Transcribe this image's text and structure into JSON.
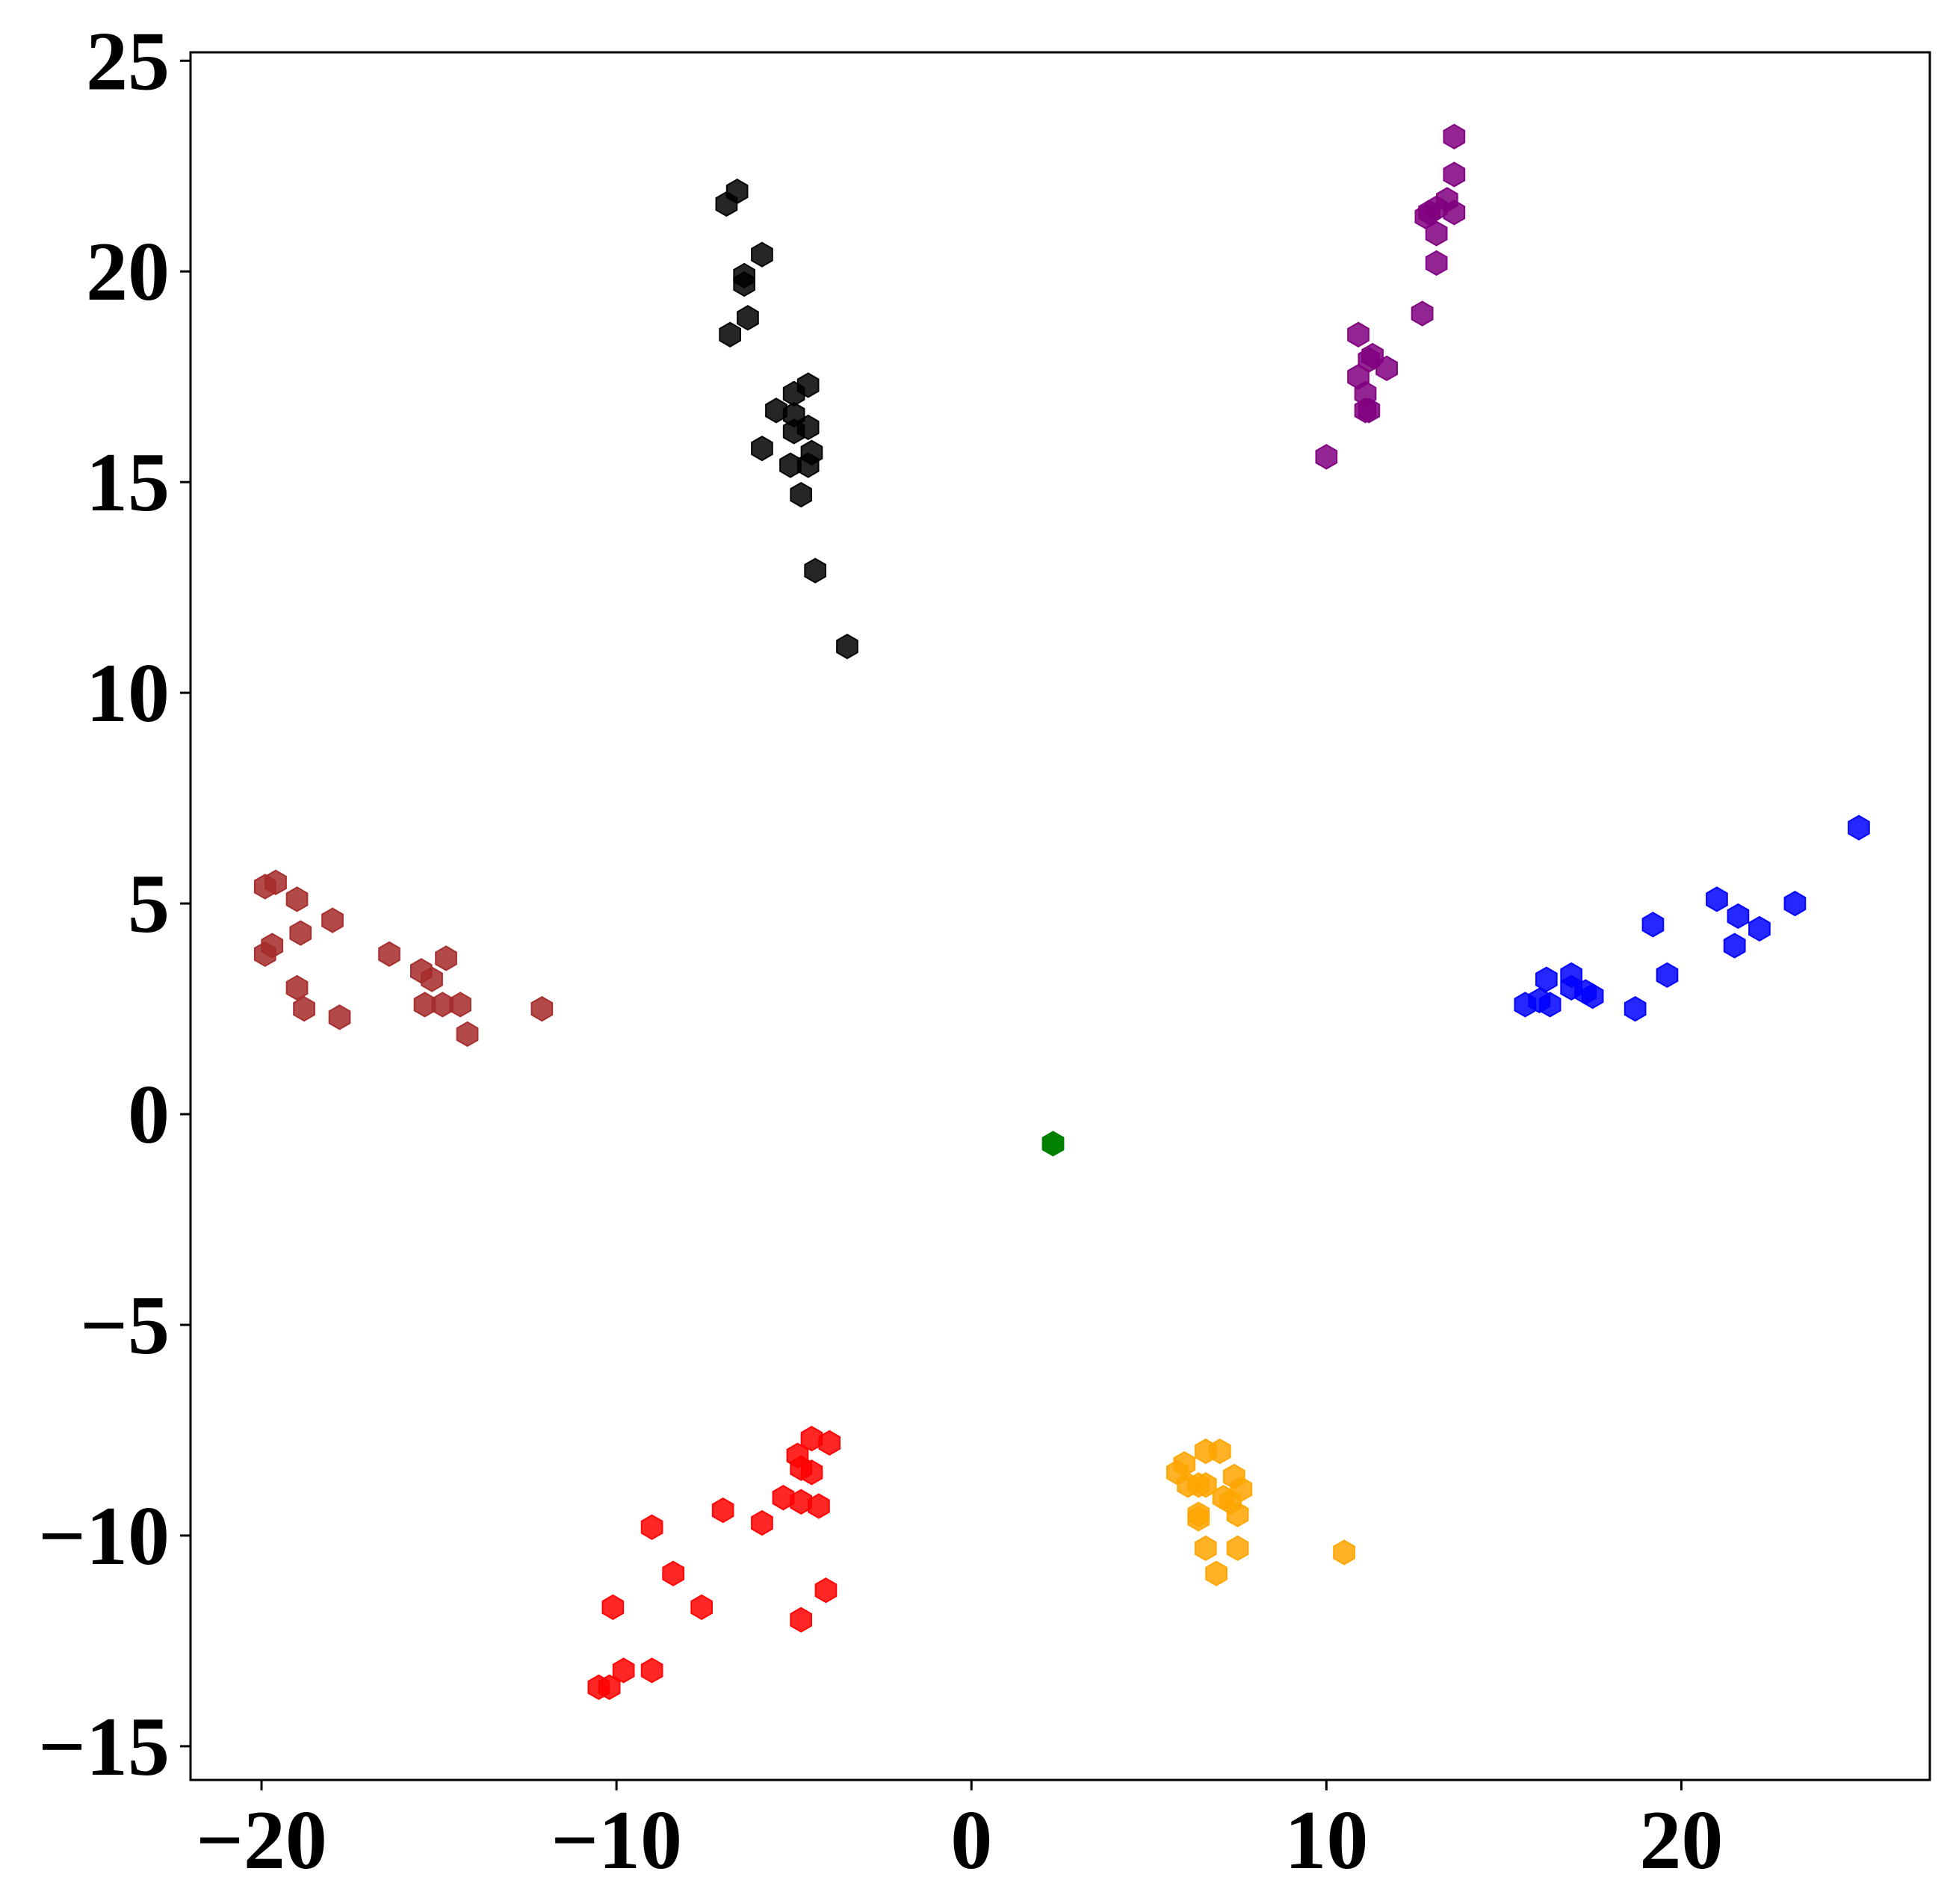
{
  "chart_data": {
    "type": "scatter",
    "title": "",
    "xlabel": "",
    "ylabel": "",
    "xlim": [
      -22,
      27
    ],
    "ylim": [
      -15.8,
      25.2
    ],
    "x_ticks": [
      -20,
      -10,
      0,
      10,
      20
    ],
    "y_ticks": [
      -15,
      -10,
      -5,
      0,
      5,
      10,
      15,
      20,
      25
    ],
    "x_tick_labels": [
      "−20",
      "−10",
      "0",
      "10",
      "20"
    ],
    "y_tick_labels": [
      "−15",
      "−10",
      "−5",
      "0",
      "5",
      "10",
      "15",
      "20",
      "25"
    ],
    "grid": false,
    "legend": "none",
    "marker": "hexagon",
    "series": [
      {
        "color": "#000000",
        "opacity": 0.85,
        "points": [
          [
            -6.6,
            21.9
          ],
          [
            -6.9,
            21.6
          ],
          [
            -5.9,
            20.4
          ],
          [
            -6.4,
            19.9
          ],
          [
            -6.4,
            19.7
          ],
          [
            -6.3,
            18.9
          ],
          [
            -6.8,
            18.5
          ],
          [
            -4.6,
            17.3
          ],
          [
            -5.0,
            17.1
          ],
          [
            -5.5,
            16.7
          ],
          [
            -5.0,
            16.6
          ],
          [
            -4.6,
            16.3
          ],
          [
            -5.0,
            16.2
          ],
          [
            -5.9,
            15.8
          ],
          [
            -4.5,
            15.7
          ],
          [
            -5.1,
            15.4
          ],
          [
            -4.6,
            15.4
          ],
          [
            -4.8,
            14.7
          ],
          [
            -4.4,
            12.9
          ],
          [
            -3.5,
            11.1
          ]
        ]
      },
      {
        "color": "#800080",
        "opacity": 0.85,
        "points": [
          [
            13.6,
            23.2
          ],
          [
            13.6,
            22.3
          ],
          [
            13.4,
            21.7
          ],
          [
            13.1,
            21.5
          ],
          [
            12.9,
            21.4
          ],
          [
            13.6,
            21.4
          ],
          [
            12.8,
            21.3
          ],
          [
            13.1,
            20.9
          ],
          [
            13.1,
            20.2
          ],
          [
            12.7,
            19.0
          ],
          [
            10.9,
            18.5
          ],
          [
            11.3,
            18.0
          ],
          [
            11.2,
            17.9
          ],
          [
            11.7,
            17.7
          ],
          [
            10.9,
            17.5
          ],
          [
            11.1,
            17.1
          ],
          [
            11.1,
            16.7
          ],
          [
            11.2,
            16.7
          ],
          [
            10.0,
            15.6
          ]
        ]
      },
      {
        "color": "#0000ff",
        "opacity": 0.85,
        "points": [
          [
            25.0,
            6.8
          ],
          [
            21.0,
            5.1
          ],
          [
            23.2,
            5.0
          ],
          [
            21.6,
            4.7
          ],
          [
            19.2,
            4.5
          ],
          [
            22.2,
            4.4
          ],
          [
            21.5,
            4.0
          ],
          [
            19.6,
            3.3
          ],
          [
            16.2,
            3.2
          ],
          [
            16.9,
            3.3
          ],
          [
            16.9,
            3.0
          ],
          [
            17.3,
            2.9
          ],
          [
            17.5,
            2.8
          ],
          [
            16.0,
            2.7
          ],
          [
            16.3,
            2.6
          ],
          [
            15.6,
            2.6
          ],
          [
            18.7,
            2.5
          ]
        ]
      },
      {
        "color": "#a52a2a",
        "opacity": 0.85,
        "points": [
          [
            -19.6,
            5.5
          ],
          [
            -19.9,
            5.4
          ],
          [
            -19.0,
            5.1
          ],
          [
            -18.9,
            4.3
          ],
          [
            -18.0,
            4.6
          ],
          [
            -19.7,
            4.0
          ],
          [
            -19.9,
            3.8
          ],
          [
            -16.4,
            3.8
          ],
          [
            -14.8,
            3.7
          ],
          [
            -15.5,
            3.4
          ],
          [
            -15.2,
            3.2
          ],
          [
            -19.0,
            3.0
          ],
          [
            -18.8,
            2.5
          ],
          [
            -15.4,
            2.6
          ],
          [
            -14.9,
            2.6
          ],
          [
            -14.4,
            2.6
          ],
          [
            -17.8,
            2.3
          ],
          [
            -12.1,
            2.5
          ],
          [
            -14.2,
            1.9
          ]
        ]
      },
      {
        "color": "#008000",
        "opacity": 1.0,
        "points": [
          [
            2.3,
            -0.7
          ]
        ]
      },
      {
        "color": "#ff0000",
        "opacity": 0.85,
        "points": [
          [
            -4.5,
            -7.7
          ],
          [
            -4.0,
            -7.8
          ],
          [
            -4.9,
            -8.1
          ],
          [
            -4.8,
            -8.4
          ],
          [
            -4.5,
            -8.5
          ],
          [
            -5.3,
            -9.1
          ],
          [
            -4.8,
            -9.2
          ],
          [
            -4.3,
            -9.3
          ],
          [
            -7.0,
            -9.4
          ],
          [
            -5.9,
            -9.7
          ],
          [
            -9.0,
            -9.8
          ],
          [
            -8.4,
            -10.9
          ],
          [
            -4.1,
            -11.3
          ],
          [
            -10.1,
            -11.7
          ],
          [
            -7.6,
            -11.7
          ],
          [
            -4.8,
            -12.0
          ],
          [
            -9.8,
            -13.2
          ],
          [
            -9.0,
            -13.2
          ],
          [
            -10.2,
            -13.6
          ],
          [
            -10.5,
            -13.6
          ]
        ]
      },
      {
        "color": "#ffa500",
        "opacity": 0.85,
        "points": [
          [
            6.6,
            -8.0
          ],
          [
            7.0,
            -8.0
          ],
          [
            6.0,
            -8.3
          ],
          [
            5.8,
            -8.5
          ],
          [
            7.4,
            -8.6
          ],
          [
            6.1,
            -8.8
          ],
          [
            6.4,
            -8.8
          ],
          [
            6.6,
            -8.8
          ],
          [
            7.6,
            -8.9
          ],
          [
            7.1,
            -9.1
          ],
          [
            7.3,
            -9.2
          ],
          [
            6.4,
            -9.5
          ],
          [
            7.5,
            -9.5
          ],
          [
            6.4,
            -9.6
          ],
          [
            6.6,
            -10.3
          ],
          [
            7.5,
            -10.3
          ],
          [
            10.5,
            -10.4
          ],
          [
            6.9,
            -10.9
          ]
        ]
      }
    ]
  }
}
